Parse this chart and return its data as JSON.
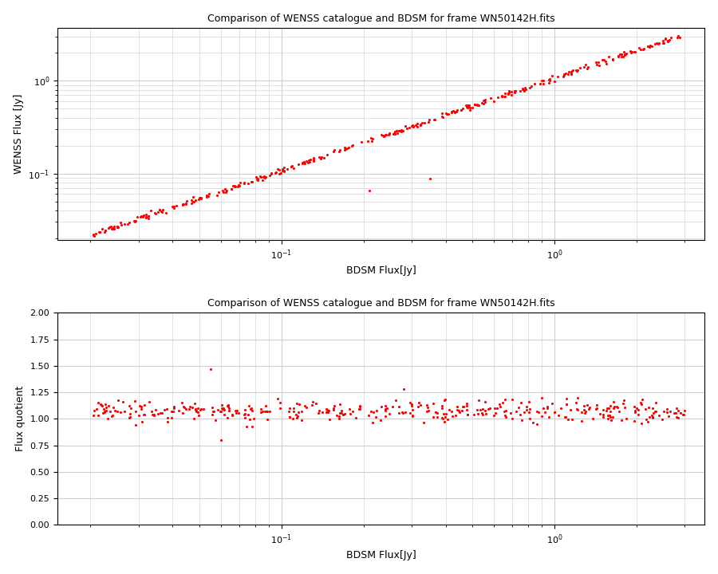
{
  "title": "Comparison of WENSS catalogue and BDSM for frame WN50142H.fits",
  "xlabel_top": "BDSM Flux[Jy]",
  "xlabel_bottom": "BDSM Flux[Jy]",
  "ylabel_top": "WENSS Flux [Jy]",
  "ylabel_bottom": "Flux quotient",
  "dot_color": "#ff0000",
  "dot_size": 5,
  "background_color": "#ffffff",
  "grid_color": "#cccccc",
  "seed": 42,
  "yticks_bottom": [
    0.0,
    0.25,
    0.5,
    0.75,
    1.0,
    1.25,
    1.5,
    1.75,
    2.0
  ]
}
